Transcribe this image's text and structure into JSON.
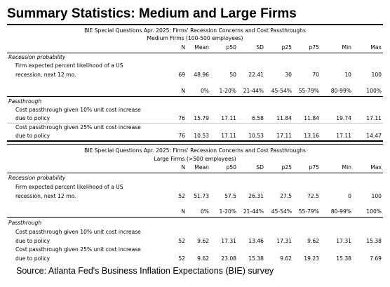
{
  "title": "Summary Statistics: Medium and Large Firms",
  "source": "Source: Atlanta Fed's Business Inflation Expectations (BIE) survey",
  "tables": [
    {
      "heading": "BIE Special Questions Apr. 2025: Firms' Recession Concerns and Cost Passthroughs",
      "subheading": "Medium Firms (100-500 employees)",
      "stat_header": [
        "N",
        "Mean",
        "p50",
        "SD",
        "p25",
        "p75",
        "Min",
        "Max"
      ],
      "recession_section": "Recession probability",
      "recession_label_1": "Firm expected percent likelihood of a US",
      "recession_label_2": "recession, next 12 mo.",
      "recession_values": [
        "69",
        "48.96",
        "50",
        "22.41",
        "30",
        "70",
        "10",
        "100"
      ],
      "bucket_header": [
        "N",
        "0%",
        "1-20%",
        "21-44%",
        "45-54%",
        "55-79%",
        "80-99%",
        "100%"
      ],
      "passthrough_section": "Passthrough",
      "pt10_label_1": "Cost passthrough given 10% unit cost increase",
      "pt10_label_2": "due to policy",
      "pt10_values": [
        "76",
        "15.79",
        "17.11",
        "6.58",
        "11.84",
        "11.84",
        "19.74",
        "17.11"
      ],
      "pt25_label_1": "Cost passthrough given 25% unit cost increase",
      "pt25_label_2": "due to policy",
      "pt25_values": [
        "76",
        "10.53",
        "17.11",
        "10.53",
        "17.11",
        "13.16",
        "17.11",
        "14.47"
      ]
    },
    {
      "heading": "BIE Special Questions Apr. 2025: Firms' Recession Concerns and Cost Passthroughs",
      "subheading": "Large Firms (>500 employees)",
      "stat_header": [
        "N",
        "Mean",
        "p50",
        "SD",
        "p25",
        "p75",
        "Min",
        "Max"
      ],
      "recession_section": "Recession probability",
      "recession_label_1": "Firm expected percent likelihood of a US",
      "recession_label_2": "recession, next 12 mo.",
      "recession_values": [
        "52",
        "51.73",
        "57.5",
        "26.31",
        "27.5",
        "72.5",
        "0",
        "100"
      ],
      "bucket_header": [
        "N",
        "0%",
        "1-20%",
        "21-44%",
        "45-54%",
        "55-79%",
        "80-99%",
        "100%"
      ],
      "passthrough_section": "Passthrough",
      "pt10_label_1": "Cost passthrough given 10% unit cost increase",
      "pt10_label_2": "due to policy",
      "pt10_values": [
        "52",
        "9.62",
        "17.31",
        "13.46",
        "17.31",
        "9.62",
        "17.31",
        "15.38"
      ],
      "pt25_label_1": "Cost passthrough given 25% unit cost increase",
      "pt25_label_2": "due to policy",
      "pt25_values": [
        "52",
        "9.62",
        "23.08",
        "15.38",
        "9.62",
        "19.23",
        "15.38",
        "7.69"
      ]
    }
  ]
}
